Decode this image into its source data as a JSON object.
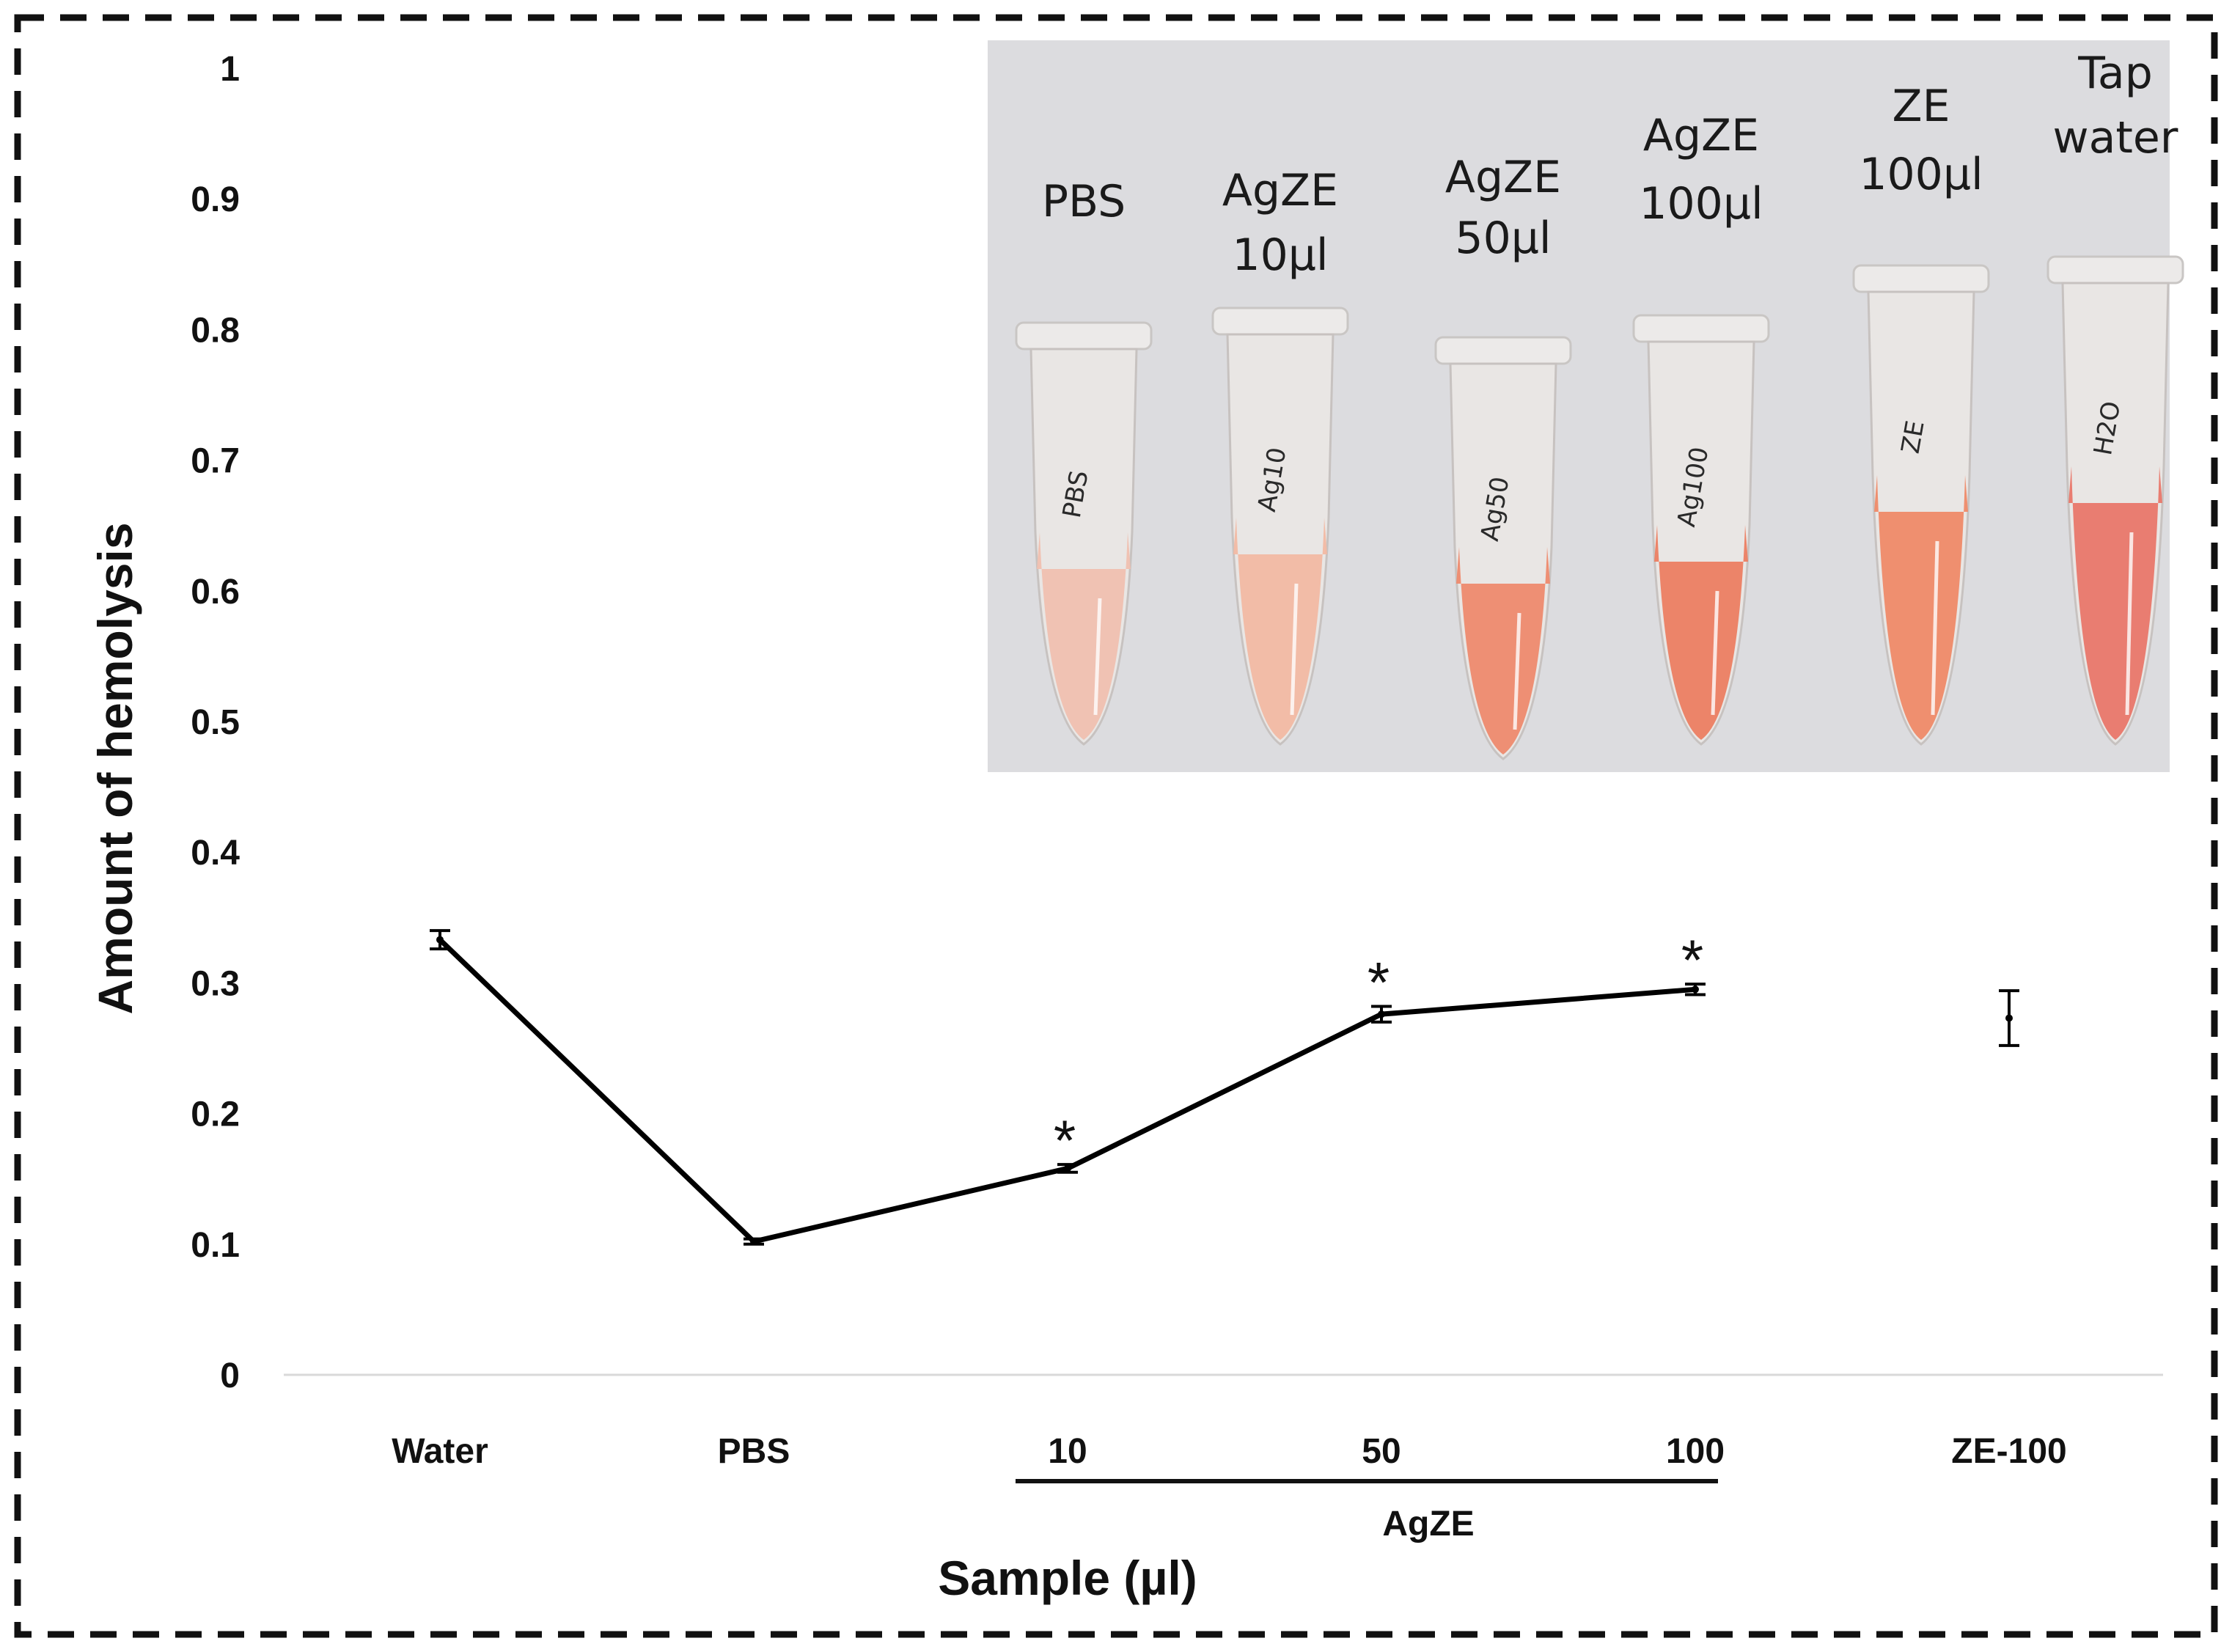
{
  "chart_data": {
    "type": "line",
    "title": "",
    "xlabel": "Sample (µl)",
    "ylabel": "Amount of hemolysis",
    "ylim": [
      0,
      1
    ],
    "yticks": [
      "0",
      "0.1",
      "0.2",
      "0.3",
      "0.4",
      "0.5",
      "0.6",
      "0.7",
      "0.8",
      "0.9",
      "1"
    ],
    "grid": false,
    "categories": [
      "Water",
      "PBS",
      "10",
      "50",
      "100",
      "ZE-100"
    ],
    "series": [
      {
        "name": "Hemolysis",
        "color": "#000000",
        "values": [
          0.333,
          0.102,
          0.158,
          0.276,
          0.295,
          0.273
        ],
        "errors": [
          0.007,
          0.002,
          0.003,
          0.006,
          0.004,
          0.021
        ],
        "connected": [
          true,
          true,
          true,
          true,
          true,
          false
        ]
      }
    ],
    "significance": [
      "",
      "",
      "*",
      "*",
      "*",
      ""
    ],
    "group_bracket": {
      "label": "AgZE",
      "from_category": "10",
      "to_category": "100"
    }
  },
  "inset_photo": {
    "tube_labels": [
      "PBS",
      "AgZE 10µl",
      "AgZE 50µl",
      "AgZE 100µl",
      "ZE 100µl",
      "Tap water"
    ],
    "tube_marks": [
      "PBS",
      "Ag10",
      "Ag50",
      "Ag100",
      "ZE",
      "H2O"
    ],
    "tube_colors": [
      "#f0c0b0",
      "#f2b9a3",
      "#ee8a6e",
      "#ec7e62",
      "#ef8a68",
      "#e9776a"
    ]
  }
}
